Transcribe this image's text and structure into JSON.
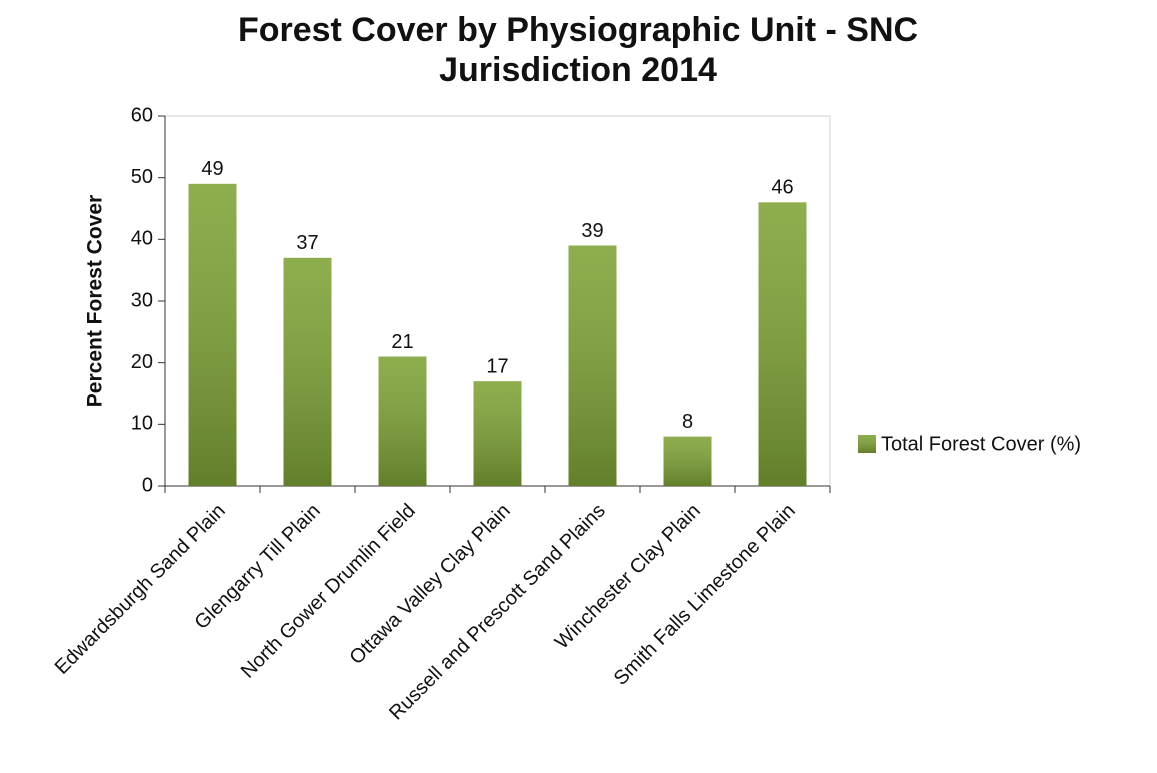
{
  "chart_data": {
    "type": "bar",
    "title": "Forest Cover by Physiographic Unit - SNC Jurisdiction 2014",
    "y_label": "Percent Forest Cover",
    "categories": [
      "Edwardsburgh Sand Plain",
      "Glengarry Till Plain",
      "North Gower Drumlin Field",
      "Ottawa Valley Clay Plain",
      "Russell and Prescott Sand Plains",
      "Winchester Clay Plain",
      "Smith Falls Limestone Plain"
    ],
    "series": [
      {
        "name": "Total Forest Cover (%)",
        "color": "#7ea236",
        "values": [
          49,
          37,
          21,
          17,
          39,
          8,
          46
        ]
      }
    ],
    "ylim": [
      0,
      60
    ],
    "yticks": [
      0,
      10,
      20,
      30,
      40,
      50,
      60
    ],
    "grid": false,
    "legend": "right"
  }
}
